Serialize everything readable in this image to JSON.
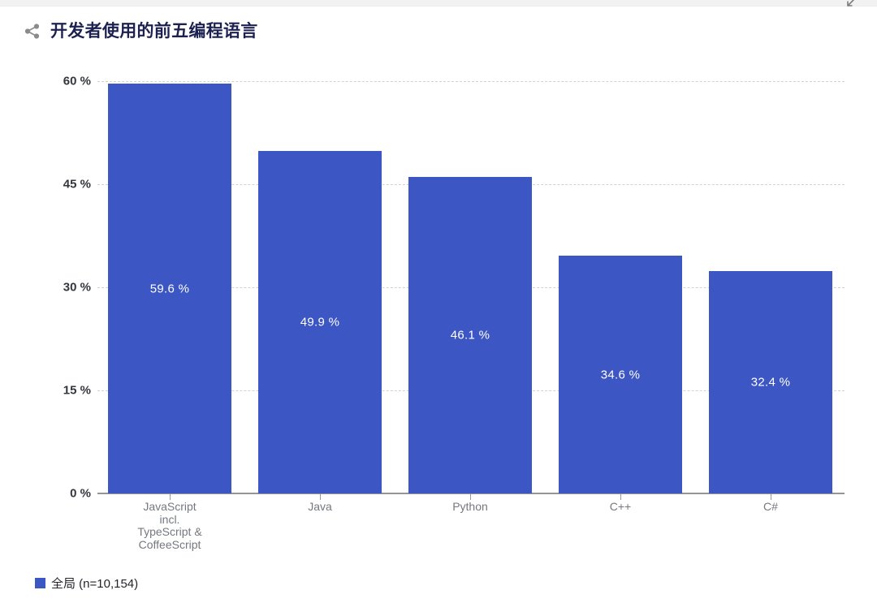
{
  "header": {
    "title": "开发者使用的前五编程语言"
  },
  "icons": {
    "share": "share-icon",
    "collapse": "arrow-down-left-icon"
  },
  "colors": {
    "bar_fill": "#3c56c3",
    "title_text": "#1d2150",
    "ytick_text": "#33373d",
    "xtick_text": "#74787f",
    "gridline": "#d2d2d2",
    "axis_line": "#949494",
    "bar_label_text": "#ffffff"
  },
  "chart_data": {
    "type": "bar",
    "title": "开发者使用的前五编程语言",
    "categories": [
      "JavaScript\nincl.\nTypeScript &\nCoffeeScript",
      "Java",
      "Python",
      "C++",
      "C#"
    ],
    "values": [
      59.6,
      49.9,
      46.1,
      34.6,
      32.4
    ],
    "bar_labels": [
      "59.6 %",
      "49.9 %",
      "46.1 %",
      "34.6 %",
      "32.4 %"
    ],
    "series": [
      {
        "name": "全局 (n=10,154)",
        "color": "#3c56c3",
        "values": [
          59.6,
          49.9,
          46.1,
          34.6,
          32.4
        ]
      }
    ],
    "xlabel": "",
    "ylabel": "",
    "ylim": [
      0,
      60
    ],
    "yticks": [
      0,
      15,
      30,
      45,
      60
    ],
    "ytick_labels": [
      "0 %",
      "15 %",
      "30 %",
      "45 %",
      "60 %"
    ],
    "grid": "horizontal-dashed",
    "legend_position": "bottom-left"
  },
  "legend": {
    "label": "全局 (n=10,154)",
    "swatch_color": "#3c56c3"
  }
}
